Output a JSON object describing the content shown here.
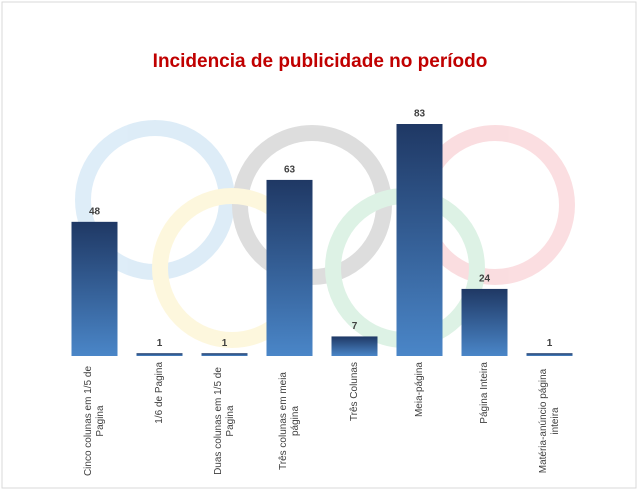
{
  "chart_data": {
    "type": "bar",
    "title": "Incidencia de publicidade no período",
    "categories": [
      "Cinco colunas em 1/5 de Pagina",
      "1/6 de Pagina",
      "Duas colunas em 1/5 de Pagina",
      "Três colunas em meia página",
      "Três Colunas",
      "Meia-página",
      "Página Inteira",
      "Matéria-anúncio página inteira"
    ],
    "values": [
      48,
      1,
      1,
      63,
      7,
      83,
      24,
      1
    ],
    "color": [
      "#1f3864",
      "#4a86c8"
    ]
  }
}
